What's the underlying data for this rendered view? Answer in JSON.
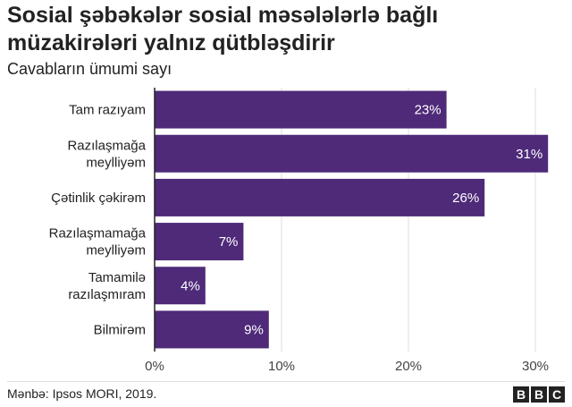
{
  "title": "Sosial şəbəkələr sosial məsələlərlə bağlı müzakirələri yalnız qütbləşdirir",
  "subtitle": "Cavabların ümumi sayı",
  "source": "Mənbə: Ipsos MORI, 2019.",
  "logo": [
    "B",
    "B",
    "C"
  ],
  "colors": {
    "bar": "#4e2a79",
    "grid": "#dddddd",
    "axis": "#222222",
    "label_in_bar": "#ffffff"
  },
  "chart_data": {
    "type": "bar",
    "orientation": "horizontal",
    "categories": [
      [
        "Tam razıyam"
      ],
      [
        "Razılaşmağa",
        "meylliyəm"
      ],
      [
        "Çətinlik çəkirəm"
      ],
      [
        "Razılaşmamağa",
        "meylliyəm"
      ],
      [
        "Tamamilə",
        "razılaşmıram"
      ],
      [
        "Bilmirəm"
      ]
    ],
    "values": [
      23,
      31,
      26,
      7,
      4,
      9
    ],
    "value_labels": [
      "23%",
      "31%",
      "26%",
      "7%",
      "4%",
      "9%"
    ],
    "title": "Sosial şəbəkələr sosial məsələlərlə bağlı müzakirələri yalnız qütbləşdirir",
    "subtitle": "Cavabların ümumi sayı",
    "xlabel": "",
    "ylabel": "",
    "xlim": [
      0,
      32
    ],
    "ticks": [
      0,
      10,
      20,
      30
    ],
    "tick_labels": [
      "0%",
      "10%",
      "20%",
      "30%"
    ],
    "grid": true,
    "legend": "none"
  }
}
